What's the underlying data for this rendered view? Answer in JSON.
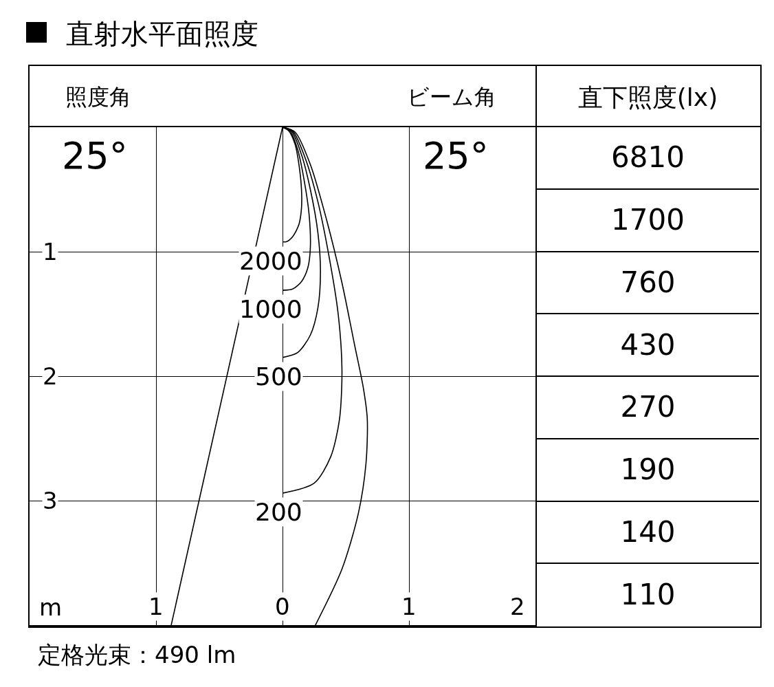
{
  "chart_data": [
    {
      "type": "line",
      "title": "直射水平面照度",
      "xlabel": "m",
      "annotations": [
        "照度角",
        "ビーム角",
        "25°",
        "25°",
        "定格光束：490 lm"
      ],
      "xlim": [
        -2,
        2
      ],
      "ylim": [
        4,
        0
      ],
      "xticks": [
        {
          "value": -1,
          "label": "1"
        },
        0,
        1,
        2
      ],
      "yticks": [
        1,
        2,
        3
      ],
      "grid": true,
      "series": [
        {
          "name": "2000",
          "color": "#000000",
          "x": [
            0,
            0.05,
            0.1,
            0.13,
            0.15,
            0.15,
            0.13,
            0.08,
            0.03,
            0
          ],
          "values": [
            0,
            0.03,
            0.14,
            0.3,
            0.5,
            0.65,
            0.78,
            0.88,
            0.92,
            0.92
          ]
        },
        {
          "name": "1000",
          "color": "#000000",
          "x": [
            0,
            0.06,
            0.12,
            0.17,
            0.21,
            0.22,
            0.2,
            0.15,
            0.08,
            0
          ],
          "values": [
            0,
            0.03,
            0.18,
            0.42,
            0.7,
            0.97,
            1.13,
            1.24,
            1.3,
            1.31
          ]
        },
        {
          "name": "500",
          "color": "#000000",
          "x": [
            0,
            0.07,
            0.15,
            0.22,
            0.28,
            0.3,
            0.28,
            0.22,
            0.12,
            0
          ],
          "values": [
            0,
            0.03,
            0.22,
            0.5,
            0.85,
            1.16,
            1.45,
            1.67,
            1.81,
            1.85
          ]
        },
        {
          "name": "200",
          "color": "#000000",
          "x": [
            0,
            0.08,
            0.18,
            0.28,
            0.37,
            0.44,
            0.47,
            0.45,
            0.38,
            0.25,
            0
          ],
          "values": [
            0,
            0.03,
            0.25,
            0.6,
            1.05,
            1.5,
            1.95,
            2.35,
            2.65,
            2.86,
            2.94
          ]
        },
        {
          "color": "#000000",
          "x": [
            0,
            0.1,
            0.22,
            0.35,
            0.47,
            0.57,
            0.64,
            0.67,
            0.66,
            0.6,
            0.47,
            0.26
          ],
          "values": [
            0,
            0.04,
            0.3,
            0.75,
            1.25,
            1.75,
            2.1,
            2.34,
            2.7,
            3.1,
            3.55,
            4
          ]
        },
        {
          "color": "#000000",
          "x": [
            0,
            -0.88
          ],
          "values": [
            0,
            4
          ]
        }
      ]
    },
    {
      "type": "other",
      "title": "直下照度(lx)",
      "values": [
        6810,
        1700,
        760,
        430,
        270,
        190,
        140,
        110
      ],
      "data_labels": true
    }
  ]
}
